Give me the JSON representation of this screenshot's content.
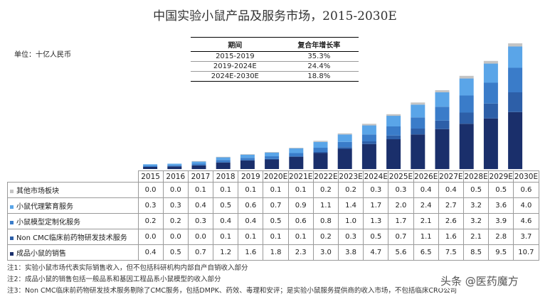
{
  "title": "中国实验小鼠产品及服务市场，2015-2030E",
  "unit_label": "单位：十亿人民币",
  "cagr_table": {
    "headers": [
      "期间",
      "复合年增长率"
    ],
    "rows": [
      [
        "2015-2019",
        "35.3%"
      ],
      [
        "2019-2024E",
        "24.4%"
      ],
      [
        "2024E-2030E",
        "18.8%"
      ]
    ]
  },
  "chart_data": {
    "type": "bar",
    "stacked": true,
    "categories": [
      "2015",
      "2016",
      "2017",
      "2018",
      "2019",
      "2020E",
      "2021E",
      "2022E",
      "2023E",
      "2024E",
      "2025E",
      "2026E",
      "2027E",
      "2028E",
      "2029E",
      "2030E"
    ],
    "series": [
      {
        "name": "成品小鼠的销售",
        "color": "#1a2f6b",
        "values": [
          0.4,
          0.5,
          0.7,
          1.2,
          1.6,
          1.8,
          2.3,
          3.0,
          3.8,
          4.7,
          5.6,
          6.5,
          7.5,
          8.5,
          9.5,
          10.7
        ]
      },
      {
        "name": "Non CMC临床前药物研发技术服务",
        "color": "#2d5fa8",
        "values": [
          0.0,
          0.0,
          0.0,
          0.1,
          0.1,
          0.1,
          0.1,
          0.2,
          0.3,
          0.5,
          0.7,
          1.1,
          1.6,
          2.1,
          2.8,
          3.7
        ]
      },
      {
        "name": "小鼠模型定制化服务",
        "color": "#3a7cc9",
        "values": [
          0.2,
          0.2,
          0.3,
          0.4,
          0.4,
          0.5,
          0.6,
          0.8,
          1.0,
          1.3,
          1.7,
          2.1,
          2.6,
          3.2,
          3.9,
          4.6
        ]
      },
      {
        "name": "小鼠代理繁育服务",
        "color": "#5aa5e8",
        "values": [
          0.3,
          0.3,
          0.4,
          0.5,
          0.6,
          0.7,
          0.9,
          1.1,
          1.4,
          1.7,
          2.0,
          2.4,
          2.7,
          3.2,
          3.6,
          4.0
        ]
      },
      {
        "name": "其他市场板块",
        "color": "#c4c4c4",
        "values": [
          0.0,
          0.0,
          0.1,
          0.1,
          0.1,
          0.1,
          0.1,
          0.2,
          0.2,
          0.3,
          0.3,
          0.4,
          0.4,
          0.5,
          0.5,
          0.6
        ]
      }
    ]
  },
  "table_row_order": [
    4,
    3,
    2,
    1,
    0
  ],
  "notes": [
    "注1：实验小鼠市场代表实际销售收入，但不包括科研机构内部自产自销收入部分",
    "注2：成品小鼠的销售包括一般品系和基因工程品系小鼠模型的收入部分",
    "注3：Non CMC临床前药物研发技术服务剔除了CMC服务，包括DMPK、药效、毒理和安评；是实验小鼠服务提供商的收入市场，不包括临床CRO公司"
  ],
  "watermark": "头条 @医药魔方"
}
